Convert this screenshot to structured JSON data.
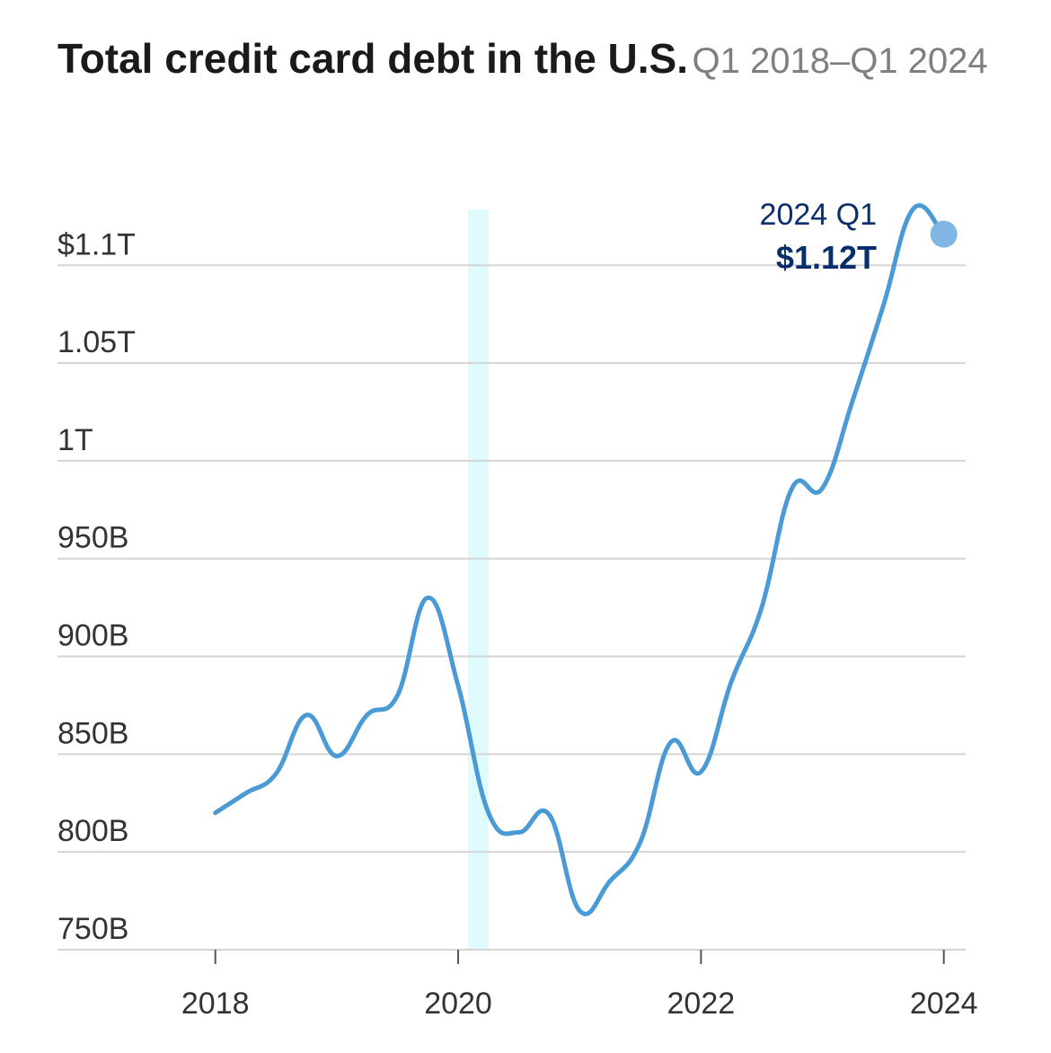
{
  "title": "Total credit card debt in the U.S.",
  "subtitle": "Q1 2018–Q1 2024",
  "colors": {
    "line": "#4a9ad6",
    "endpoint": "#7fb6e4",
    "recession": "#e0fbfd",
    "grid": "#d4d4d4",
    "annotation": "#0a2e6b"
  },
  "annotation": {
    "label": "2024 Q1",
    "value": "$1.12T"
  },
  "chart_data": {
    "type": "line",
    "title": "Total credit card debt in the U.S.",
    "subtitle": "Q1 2018–Q1 2024",
    "y_ticks": [
      {
        "value": 750,
        "label": "750B"
      },
      {
        "value": 800,
        "label": "800B"
      },
      {
        "value": 850,
        "label": "850B"
      },
      {
        "value": 900,
        "label": "900B"
      },
      {
        "value": 950,
        "label": "950B"
      },
      {
        "value": 1000,
        "label": "1T"
      },
      {
        "value": 1050,
        "label": "1.05T"
      },
      {
        "value": 1100,
        "label": "$1.1T"
      }
    ],
    "x_ticks": [
      2018,
      2020,
      2022,
      2024
    ],
    "xlim": [
      2016.7,
      2024.18
    ],
    "ylim": [
      750,
      1130
    ],
    "recession_band": [
      2020.08,
      2020.25
    ],
    "series": [
      {
        "values": [
          {
            "x": 2018.0,
            "y": 820
          },
          {
            "x": 2018.25,
            "y": 830
          },
          {
            "x": 2018.5,
            "y": 840
          },
          {
            "x": 2018.75,
            "y": 870
          },
          {
            "x": 2019.0,
            "y": 849
          },
          {
            "x": 2019.25,
            "y": 870
          },
          {
            "x": 2019.5,
            "y": 880
          },
          {
            "x": 2019.75,
            "y": 930
          },
          {
            "x": 2020.0,
            "y": 885
          },
          {
            "x": 2020.25,
            "y": 820
          },
          {
            "x": 2020.5,
            "y": 810
          },
          {
            "x": 2020.75,
            "y": 819
          },
          {
            "x": 2021.0,
            "y": 770
          },
          {
            "x": 2021.25,
            "y": 785
          },
          {
            "x": 2021.5,
            "y": 805
          },
          {
            "x": 2021.75,
            "y": 856
          },
          {
            "x": 2022.0,
            "y": 841
          },
          {
            "x": 2022.25,
            "y": 887
          },
          {
            "x": 2022.5,
            "y": 925
          },
          {
            "x": 2022.75,
            "y": 986
          },
          {
            "x": 2023.0,
            "y": 986
          },
          {
            "x": 2023.25,
            "y": 1031
          },
          {
            "x": 2023.5,
            "y": 1079
          },
          {
            "x": 2023.75,
            "y": 1129
          },
          {
            "x": 2024.0,
            "y": 1115
          }
        ]
      }
    ]
  }
}
